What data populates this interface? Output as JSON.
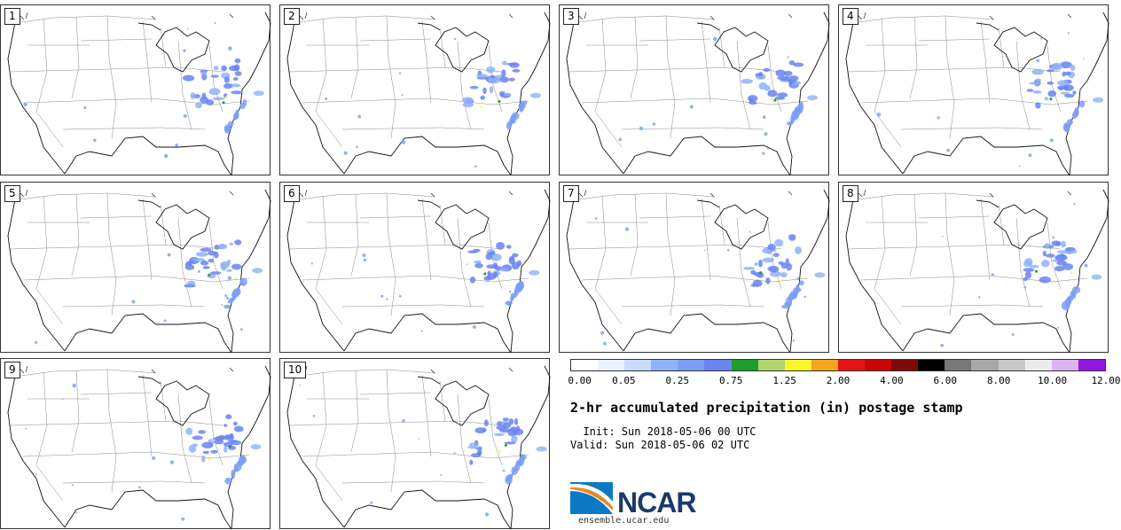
{
  "panels": [
    {
      "label": "1"
    },
    {
      "label": "2"
    },
    {
      "label": "3"
    },
    {
      "label": "4"
    },
    {
      "label": "5"
    },
    {
      "label": "6"
    },
    {
      "label": "7"
    },
    {
      "label": "8"
    },
    {
      "label": "9"
    },
    {
      "label": "10"
    }
  ],
  "colorbar": {
    "colors": [
      "#ffffff",
      "#eaf2fd",
      "#c8dcfb",
      "#8fb3f8",
      "#7a9ff5",
      "#6a84f1",
      "#1e9e2a",
      "#b3d46b",
      "#f7f72a",
      "#f7a51c",
      "#e31414",
      "#c80707",
      "#7d0a0a",
      "#000000",
      "#777777",
      "#a8a8a8",
      "#c9c9c9",
      "#ebebeb",
      "#dcb5f0",
      "#9317e0"
    ],
    "labels": [
      "0.00",
      "0.05",
      "0.25",
      "0.75",
      "1.25",
      "2.00",
      "4.00",
      "6.00",
      "8.00",
      "10.00",
      "12.00"
    ]
  },
  "title": "2-hr accumulated precipitation (in) postage stamp",
  "init": "  Init: Sun 2018-05-06 00 UTC",
  "valid": "Valid: Sun 2018-05-06 02 UTC",
  "logo": {
    "text": "NCAR",
    "site": "ensemble.ucar.edu"
  }
}
